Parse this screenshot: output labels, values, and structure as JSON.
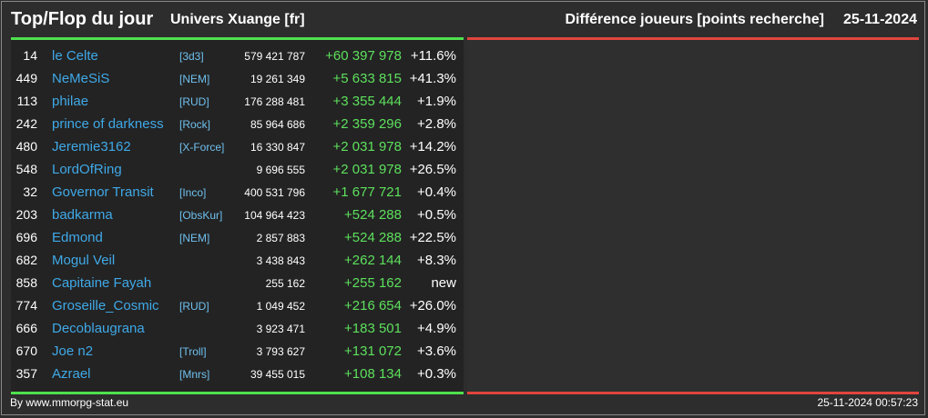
{
  "header": {
    "title": "Top/Flop du jour",
    "universe": "Univers Xuange [fr]",
    "metric": "Différence joueurs [points recherche]",
    "date": "25-11-2024"
  },
  "colors": {
    "accent_positive": "#4ee04e",
    "accent_negative": "#e0453d",
    "player_link": "#3fa9e8",
    "diff_positive": "#5de05d"
  },
  "top_rows": [
    {
      "rank": "14",
      "name": "le Celte",
      "alliance": "[3d3]",
      "points": "579 421 787",
      "diff": "+60 397 978",
      "pct": "+11.6%"
    },
    {
      "rank": "449",
      "name": "NeMeSiS",
      "alliance": "[NEM]",
      "points": "19 261 349",
      "diff": "+5 633 815",
      "pct": "+41.3%"
    },
    {
      "rank": "113",
      "name": "philae",
      "alliance": "[RUD]",
      "points": "176 288 481",
      "diff": "+3 355 444",
      "pct": "+1.9%"
    },
    {
      "rank": "242",
      "name": "prince of darkness",
      "alliance": "[Rock]",
      "points": "85 964 686",
      "diff": "+2 359 296",
      "pct": "+2.8%"
    },
    {
      "rank": "480",
      "name": "Jeremie3162",
      "alliance": "[X-Force]",
      "points": "16 330 847",
      "diff": "+2 031 978",
      "pct": "+14.2%"
    },
    {
      "rank": "548",
      "name": "LordOfRing",
      "alliance": "",
      "points": "9 696 555",
      "diff": "+2 031 978",
      "pct": "+26.5%"
    },
    {
      "rank": "32",
      "name": "Governor Transit",
      "alliance": "[Inco]",
      "points": "400 531 796",
      "diff": "+1 677 721",
      "pct": "+0.4%"
    },
    {
      "rank": "203",
      "name": "badkarma",
      "alliance": "[ObsKur]",
      "points": "104 964 423",
      "diff": "+524 288",
      "pct": "+0.5%"
    },
    {
      "rank": "696",
      "name": "Edmond",
      "alliance": "[NEM]",
      "points": "2 857 883",
      "diff": "+524 288",
      "pct": "+22.5%"
    },
    {
      "rank": "682",
      "name": "Mogul Veil",
      "alliance": "",
      "points": "3 438 843",
      "diff": "+262 144",
      "pct": "+8.3%"
    },
    {
      "rank": "858",
      "name": "Capitaine Fayah",
      "alliance": "",
      "points": "255 162",
      "diff": "+255 162",
      "pct": "new"
    },
    {
      "rank": "774",
      "name": "Groseille_Cosmic",
      "alliance": "[RUD]",
      "points": "1 049 452",
      "diff": "+216 654",
      "pct": "+26.0%"
    },
    {
      "rank": "666",
      "name": "Decoblaugrana",
      "alliance": "",
      "points": "3 923 471",
      "diff": "+183 501",
      "pct": "+4.9%"
    },
    {
      "rank": "670",
      "name": "Joe n2",
      "alliance": "[Troll]",
      "points": "3 793 627",
      "diff": "+131 072",
      "pct": "+3.6%"
    },
    {
      "rank": "357",
      "name": "Azrael",
      "alliance": "[Mnrs]",
      "points": "39 455 015",
      "diff": "+108 134",
      "pct": "+0.3%"
    }
  ],
  "footer": {
    "source": "By www.mmorpg-stat.eu",
    "timestamp": "25-11-2024 00:57:23"
  }
}
